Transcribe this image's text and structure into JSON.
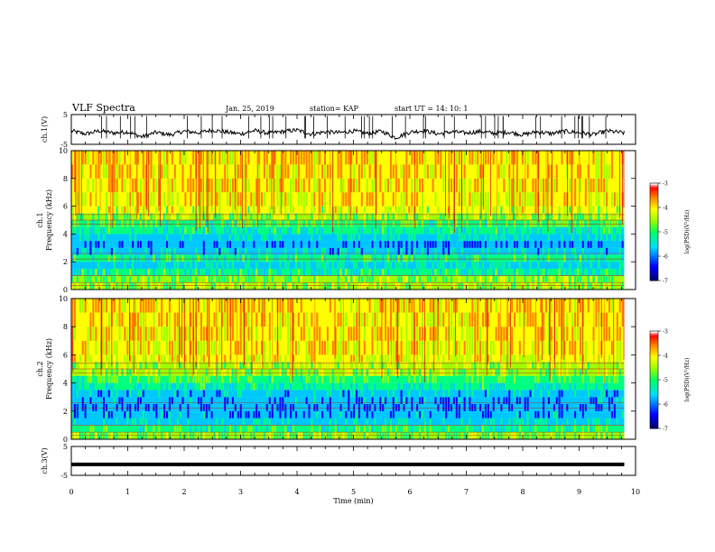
{
  "header": {
    "title": "VLF Spectra",
    "date": "Jan. 25, 2019",
    "station": "station= KAP",
    "start": "start  UT =   14: 10: 1"
  },
  "colors": {
    "palette": [
      "#000080",
      "#0000ff",
      "#00c8ff",
      "#00ff80",
      "#a0ff00",
      "#ffff00",
      "#ff8000",
      "#ff0000",
      "#ffffff"
    ]
  },
  "chart_data": [
    {
      "type": "line",
      "name": "ch1-voltage",
      "ylabel": "ch.1(V)",
      "ylim": [
        -5,
        5
      ],
      "yticks": [
        "5",
        "-5"
      ],
      "xlim": [
        0,
        10
      ],
      "x": [
        0,
        0.25,
        0.5,
        0.75,
        1,
        1.25,
        1.5,
        1.75,
        2,
        2.25,
        2.5,
        2.75,
        3,
        3.25,
        3.5,
        3.75,
        4,
        4.25,
        4.5,
        4.75,
        5,
        5.25,
        5.5,
        5.75,
        6,
        6.25,
        6.5,
        6.75,
        7,
        7.25,
        7.5,
        7.75,
        8,
        8.25,
        8.5,
        8.75,
        9,
        9.25,
        9.5,
        9.8
      ],
      "values": [
        -0.5,
        -1.5,
        -0.5,
        -1.2,
        -0.8,
        -2.5,
        -1,
        -1.8,
        -0.6,
        -1.1,
        -0.2,
        -0.9,
        -1.5,
        -0.4,
        -1.3,
        -0.7,
        -0.2,
        -1.6,
        -0.8,
        -1.1,
        -0.5,
        -1.4,
        -0.6,
        -2.8,
        -0.9,
        -0.4,
        -1.5,
        -0.8,
        -1.2,
        -0.7,
        -1.3,
        -0.9,
        -1.8,
        -0.8,
        -1.4,
        -0.6,
        -1.1,
        -1.7,
        -0.5,
        -1.2
      ]
    },
    {
      "type": "heatmap",
      "name": "ch1-spectrogram",
      "ylabel": "ch.1\nFrequency (kHz)",
      "ylim": [
        0,
        10
      ],
      "yticks": [
        "0",
        "2",
        "4",
        "6",
        "8",
        "10"
      ],
      "xlim": [
        0,
        10
      ],
      "data_xmax": 9.8,
      "freq_bands_kHz": [
        0,
        0.5,
        1,
        1.5,
        2,
        2.5,
        3,
        3.5,
        4,
        4.5,
        5,
        5.5,
        6,
        7,
        8,
        9,
        10
      ],
      "band_level_log": [
        -4.8,
        -5.0,
        -5.5,
        -5.8,
        -5.5,
        -6.0,
        -6.3,
        -5.9,
        -5.6,
        -5.2,
        -4.9,
        -4.6,
        -4.4,
        -4.3,
        -4.3,
        -4.2
      ],
      "colorbar": {
        "label": "log(PSD)(V²/Hz)",
        "range": [
          -7,
          -3
        ],
        "ticks": [
          "-3",
          "-4",
          "-5",
          "-6",
          "-7"
        ]
      }
    },
    {
      "type": "heatmap",
      "name": "ch2-spectrogram",
      "ylabel": "ch.2\nFrequency (kHz)",
      "ylim": [
        0,
        10
      ],
      "yticks": [
        "0",
        "2",
        "4",
        "6",
        "8",
        "10"
      ],
      "xlim": [
        0,
        10
      ],
      "data_xmax": 9.8,
      "freq_bands_kHz": [
        0,
        0.5,
        1,
        1.5,
        2,
        2.5,
        3,
        3.5,
        4,
        4.5,
        5,
        5.5,
        6,
        7,
        8,
        9,
        10
      ],
      "band_level_log": [
        -5.0,
        -5.4,
        -5.9,
        -6.2,
        -6.4,
        -6.2,
        -6.0,
        -5.6,
        -5.2,
        -4.9,
        -4.7,
        -4.5,
        -4.4,
        -4.3,
        -4.3,
        -4.2
      ],
      "colorbar": {
        "label": "log(PSD)(V²/Hz)",
        "range": [
          -7,
          -3
        ],
        "ticks": [
          "-3",
          "-4",
          "-5",
          "-6",
          "-7"
        ]
      }
    },
    {
      "type": "line",
      "name": "ch3-voltage",
      "ylabel": "ch.3(V)",
      "ylim": [
        -5,
        5
      ],
      "yticks": [
        "5",
        "-5"
      ],
      "xlim": [
        0,
        10
      ],
      "x": [
        0,
        9.8
      ],
      "values": [
        -1.2,
        -1.2
      ]
    }
  ],
  "xaxis": {
    "label": "Time (min)",
    "ticks": [
      "0",
      "1",
      "2",
      "3",
      "4",
      "5",
      "6",
      "7",
      "8",
      "9",
      "10"
    ]
  }
}
